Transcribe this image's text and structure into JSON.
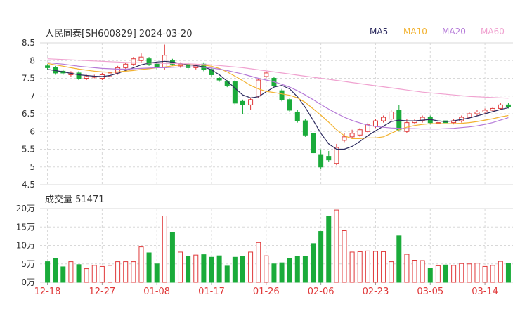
{
  "header": {
    "title": "人民同泰[SH600829] 2024-03-20",
    "volume_label": "成交量 51471"
  },
  "legend": [
    {
      "label": "MA5",
      "color": "#2d2b5f"
    },
    {
      "label": "MA10",
      "color": "#f2b230"
    },
    {
      "label": "MA20",
      "color": "#b57ad8"
    },
    {
      "label": "MA60",
      "color": "#f0a2d0"
    }
  ],
  "colors": {
    "up": "#e0393a",
    "down": "#1aab3a",
    "grid": "#d8d8d8"
  },
  "chart_data": {
    "type": "candlestick",
    "price_axis": {
      "ticks": [
        "8.5",
        "8",
        "7.5",
        "7",
        "6.5",
        "6",
        "5.5",
        "5",
        "4.5"
      ],
      "ylim": [
        4.5,
        8.5
      ]
    },
    "volume_axis": {
      "ticks": [
        "20万",
        "15万",
        "10万",
        "5万",
        "0万"
      ],
      "ylim": [
        0,
        20
      ]
    },
    "x_tick_labels": [
      "12-18",
      "12-27",
      "01-08",
      "01-17",
      "01-26",
      "02-06",
      "02-23",
      "03-05",
      "03-14"
    ],
    "x_tick_index": [
      0,
      7,
      14,
      21,
      28,
      35,
      42,
      49,
      56
    ],
    "candles": [
      [
        7.85,
        7.8,
        7.9,
        7.75,
        5.6
      ],
      [
        7.8,
        7.65,
        7.85,
        7.6,
        6.4
      ],
      [
        7.7,
        7.65,
        7.75,
        7.6,
        4.2
      ],
      [
        7.6,
        7.65,
        7.7,
        7.55,
        5.6
      ],
      [
        7.65,
        7.5,
        7.7,
        7.45,
        4.8
      ],
      [
        7.5,
        7.55,
        7.6,
        7.45,
        3.7
      ],
      [
        7.55,
        7.55,
        7.6,
        7.5,
        4.6
      ],
      [
        7.5,
        7.6,
        7.65,
        7.45,
        4.3
      ],
      [
        7.55,
        7.65,
        7.7,
        7.5,
        4.6
      ],
      [
        7.65,
        7.8,
        7.85,
        7.6,
        5.6
      ],
      [
        7.8,
        7.9,
        7.95,
        7.75,
        5.6
      ],
      [
        7.9,
        8.05,
        8.1,
        7.85,
        5.6
      ],
      [
        8.0,
        8.1,
        8.2,
        7.95,
        9.6
      ],
      [
        8.05,
        7.9,
        8.1,
        7.85,
        8.0
      ],
      [
        7.9,
        7.8,
        7.95,
        7.75,
        5.0
      ],
      [
        7.8,
        8.15,
        8.45,
        7.75,
        18.0
      ],
      [
        8.0,
        7.9,
        8.05,
        7.85,
        13.6
      ],
      [
        7.85,
        7.9,
        7.95,
        7.8,
        8.2
      ],
      [
        7.9,
        7.8,
        7.95,
        7.75,
        7.1
      ],
      [
        7.8,
        7.85,
        7.9,
        7.75,
        7.4
      ],
      [
        7.9,
        7.75,
        7.95,
        7.7,
        7.5
      ],
      [
        7.75,
        7.6,
        7.8,
        7.55,
        6.8
      ],
      [
        7.5,
        7.45,
        7.55,
        7.4,
        7.2
      ],
      [
        7.4,
        7.3,
        7.45,
        7.25,
        4.4
      ],
      [
        7.4,
        6.8,
        7.45,
        6.75,
        6.8
      ],
      [
        6.85,
        6.75,
        6.9,
        6.5,
        7.0
      ],
      [
        6.75,
        6.9,
        6.95,
        6.6,
        8.2
      ],
      [
        7.0,
        7.45,
        7.5,
        6.95,
        10.8
      ],
      [
        7.55,
        7.65,
        7.7,
        7.5,
        7.2
      ],
      [
        7.5,
        7.3,
        7.55,
        7.25,
        5.0
      ],
      [
        7.15,
        6.9,
        7.2,
        6.85,
        5.3
      ],
      [
        6.9,
        6.6,
        6.95,
        6.55,
        6.4
      ],
      [
        6.55,
        6.3,
        6.6,
        6.25,
        7.0
      ],
      [
        6.3,
        5.9,
        6.35,
        5.85,
        7.1
      ],
      [
        5.95,
        5.4,
        6.0,
        5.35,
        10.5
      ],
      [
        5.35,
        5.0,
        5.5,
        4.95,
        13.8
      ],
      [
        5.3,
        5.2,
        5.45,
        5.15,
        18.0
      ],
      [
        5.1,
        5.55,
        5.65,
        5.05,
        19.6
      ],
      [
        5.75,
        5.85,
        5.95,
        5.7,
        14.0
      ],
      [
        5.85,
        5.95,
        6.05,
        5.8,
        8.2
      ],
      [
        5.9,
        6.05,
        6.1,
        5.85,
        8.3
      ],
      [
        6.0,
        6.2,
        6.25,
        5.95,
        8.5
      ],
      [
        6.15,
        6.3,
        6.35,
        6.1,
        8.4
      ],
      [
        6.3,
        6.4,
        6.45,
        6.25,
        8.3
      ],
      [
        6.35,
        6.55,
        6.6,
        6.3,
        5.6
      ],
      [
        6.6,
        6.05,
        6.75,
        6.0,
        12.6
      ],
      [
        6.0,
        6.25,
        6.35,
        5.95,
        7.6
      ],
      [
        6.25,
        6.3,
        6.35,
        6.2,
        6.0
      ],
      [
        6.3,
        6.4,
        6.45,
        6.25,
        5.9
      ],
      [
        6.4,
        6.25,
        6.45,
        6.2,
        3.9
      ],
      [
        6.25,
        6.25,
        6.3,
        6.2,
        4.5
      ],
      [
        6.3,
        6.25,
        6.35,
        6.2,
        4.7
      ],
      [
        6.25,
        6.3,
        6.35,
        6.2,
        4.6
      ],
      [
        6.3,
        6.4,
        6.45,
        6.25,
        5.1
      ],
      [
        6.4,
        6.5,
        6.55,
        6.35,
        5.0
      ],
      [
        6.5,
        6.55,
        6.6,
        6.45,
        5.2
      ],
      [
        6.55,
        6.6,
        6.65,
        6.5,
        4.3
      ],
      [
        6.6,
        6.65,
        6.7,
        6.55,
        4.6
      ],
      [
        6.65,
        6.75,
        6.8,
        6.6,
        5.7
      ],
      [
        6.75,
        6.7,
        6.8,
        6.65,
        5.1
      ]
    ],
    "series": [
      {
        "name": "MA5",
        "values": [
          7.75,
          7.72,
          7.68,
          7.64,
          7.6,
          7.58,
          7.56,
          7.55,
          7.58,
          7.64,
          7.72,
          7.8,
          7.88,
          7.93,
          7.96,
          7.98,
          7.96,
          7.92,
          7.88,
          7.86,
          7.82,
          7.74,
          7.6,
          7.42,
          7.22,
          7.03,
          6.95,
          6.98,
          7.12,
          7.25,
          7.3,
          7.2,
          6.98,
          6.68,
          6.32,
          5.95,
          5.65,
          5.5,
          5.5,
          5.58,
          5.72,
          5.88,
          6.02,
          6.15,
          6.28,
          6.32,
          6.3,
          6.3,
          6.32,
          6.34,
          6.3,
          6.28,
          6.3,
          6.34,
          6.38,
          6.44,
          6.5,
          6.56,
          6.62,
          6.67
        ]
      },
      {
        "name": "MA10",
        "values": [
          7.92,
          7.88,
          7.84,
          7.8,
          7.76,
          7.73,
          7.7,
          7.68,
          7.67,
          7.68,
          7.7,
          7.72,
          7.75,
          7.77,
          7.8,
          7.82,
          7.85,
          7.87,
          7.88,
          7.88,
          7.87,
          7.84,
          7.78,
          7.68,
          7.56,
          7.43,
          7.3,
          7.2,
          7.13,
          7.1,
          7.06,
          7.02,
          6.95,
          6.82,
          6.64,
          6.46,
          6.26,
          6.05,
          5.88,
          5.8,
          5.8,
          5.82,
          5.82,
          5.85,
          5.95,
          6.05,
          6.12,
          6.17,
          6.2,
          6.22,
          6.22,
          6.22,
          6.22,
          6.23,
          6.25,
          6.28,
          6.32,
          6.36,
          6.41,
          6.45
        ]
      },
      {
        "name": "MA20",
        "values": [
          7.95,
          7.92,
          7.9,
          7.87,
          7.84,
          7.82,
          7.8,
          7.78,
          7.77,
          7.76,
          7.76,
          7.77,
          7.78,
          7.79,
          7.8,
          7.8,
          7.81,
          7.82,
          7.82,
          7.82,
          7.81,
          7.79,
          7.76,
          7.72,
          7.67,
          7.62,
          7.56,
          7.5,
          7.45,
          7.4,
          7.33,
          7.25,
          7.15,
          7.03,
          6.9,
          6.76,
          6.63,
          6.51,
          6.4,
          6.31,
          6.24,
          6.18,
          6.14,
          6.12,
          6.1,
          6.09,
          6.08,
          6.08,
          6.07,
          6.07,
          6.07,
          6.08,
          6.09,
          6.11,
          6.13,
          6.16,
          6.2,
          6.25,
          6.32,
          6.39
        ]
      },
      {
        "name": "MA60",
        "values": [
          8.05,
          8.04,
          8.03,
          8.02,
          8.01,
          8.0,
          7.99,
          7.98,
          7.97,
          7.96,
          7.95,
          7.94,
          7.94,
          7.93,
          7.93,
          7.92,
          7.92,
          7.91,
          7.91,
          7.9,
          7.89,
          7.88,
          7.86,
          7.84,
          7.82,
          7.8,
          7.77,
          7.74,
          7.71,
          7.68,
          7.65,
          7.62,
          7.59,
          7.56,
          7.53,
          7.5,
          7.47,
          7.44,
          7.41,
          7.38,
          7.35,
          7.32,
          7.29,
          7.26,
          7.23,
          7.2,
          7.17,
          7.14,
          7.11,
          7.09,
          7.07,
          7.05,
          7.03,
          7.01,
          6.99,
          6.98,
          6.97,
          6.96,
          6.95,
          6.94
        ]
      }
    ]
  }
}
